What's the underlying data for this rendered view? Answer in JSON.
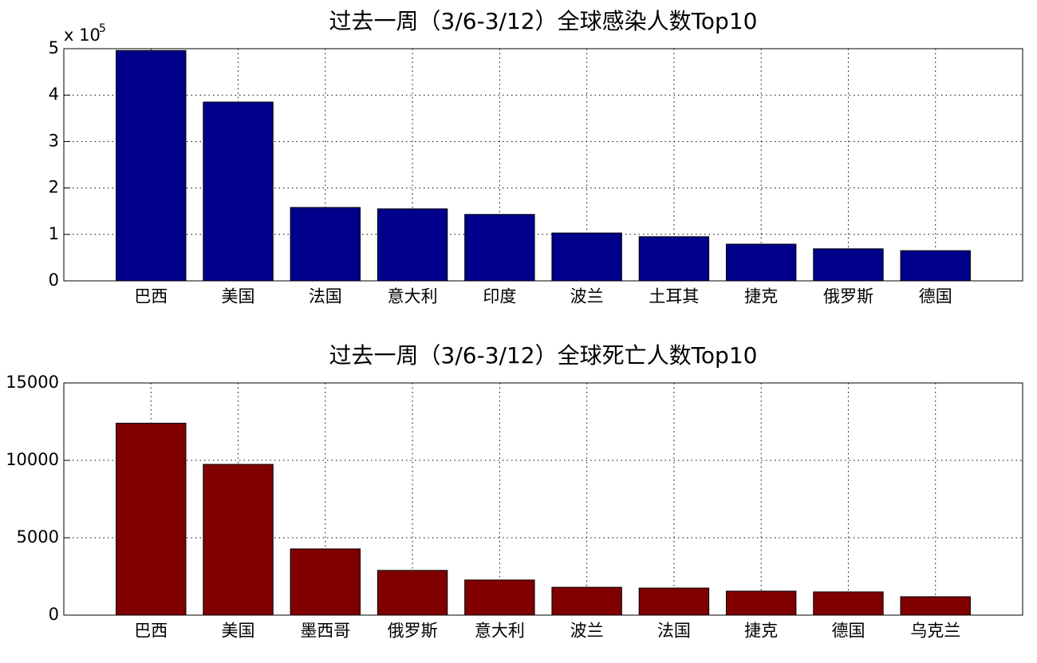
{
  "chart_data": [
    {
      "type": "bar",
      "title": "过去一周（3/6-3/12）全球感染人数Top10",
      "categories": [
        "巴西",
        "美国",
        "法国",
        "意大利",
        "印度",
        "波兰",
        "土耳其",
        "捷克",
        "俄罗斯",
        "德国"
      ],
      "values": [
        4.96,
        3.85,
        1.58,
        1.55,
        1.43,
        1.03,
        0.95,
        0.79,
        0.69,
        0.65
      ],
      "color": "#00008b",
      "ylim": [
        0,
        5
      ],
      "yticks": [
        0,
        1,
        2,
        3,
        4,
        5
      ],
      "y_multiplier": {
        "base": "x 10",
        "exponent": "5"
      },
      "grid": true
    },
    {
      "type": "bar",
      "title": "过去一周（3/6-3/12）全球死亡人数Top10",
      "categories": [
        "巴西",
        "美国",
        "墨西哥",
        "俄罗斯",
        "意大利",
        "波兰",
        "法国",
        "捷克",
        "德国",
        "乌克兰"
      ],
      "values": [
        12400,
        9740,
        4280,
        2890,
        2270,
        1800,
        1750,
        1550,
        1500,
        1190
      ],
      "color": "#800000",
      "ylim": [
        0,
        15000
      ],
      "yticks": [
        0,
        5000,
        10000,
        15000
      ],
      "grid": true
    }
  ]
}
